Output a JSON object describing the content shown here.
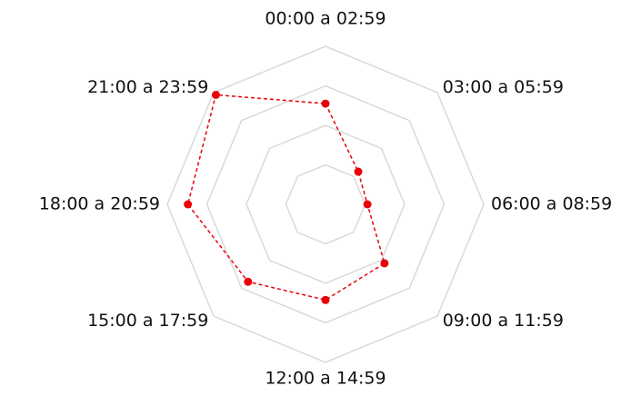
{
  "chart_data": {
    "type": "radar",
    "categories": [
      "00:00 a 02:59",
      "03:00 a 05:59",
      "06:00 a 08:59",
      "09:00 a 11:59",
      "12:00 a 14:59",
      "15:00 a 17:59",
      "18:00 a 20:59",
      "21:00 a 23:59"
    ],
    "values": [
      2.55,
      1.17,
      1.06,
      2.11,
      2.42,
      2.77,
      3.48,
      3.92
    ],
    "color": "#e8000b",
    "grid_color": "#d9d9d9",
    "rlim": [
      0,
      4
    ],
    "rticks": [
      1,
      2,
      3,
      4
    ],
    "line_style": "dashed"
  }
}
